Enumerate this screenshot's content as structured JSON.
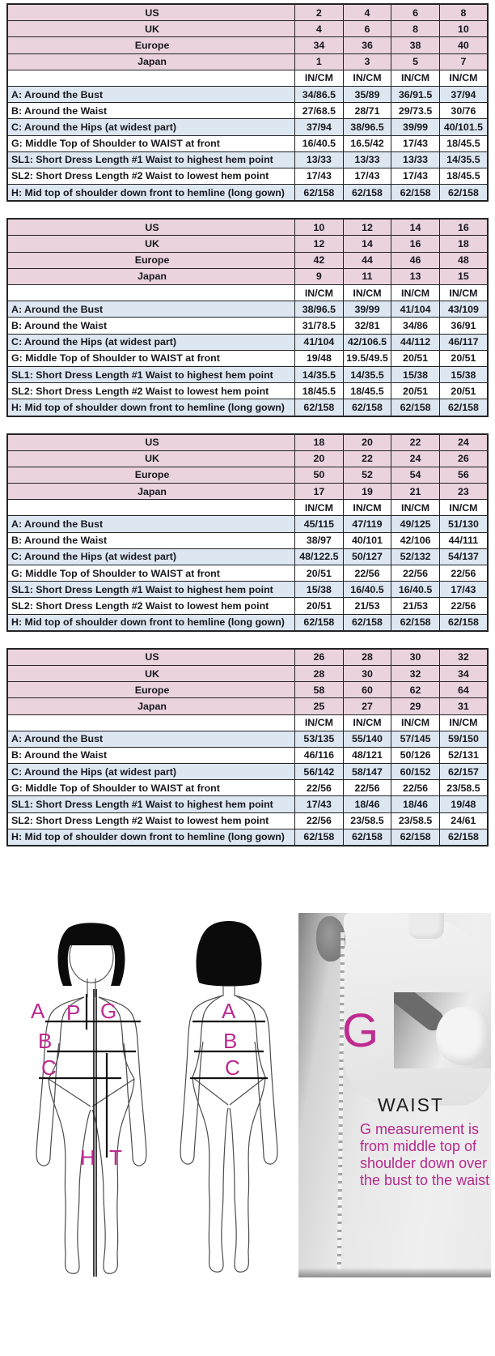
{
  "colors": {
    "header_pink": "#ead3dd",
    "row_blue": "#dde7f1",
    "row_white": "#ffffff",
    "border": "#232323",
    "text": "#17171f",
    "magenta": "#bd2990"
  },
  "unit_label": "IN/CM",
  "region_labels": [
    "US",
    "UK",
    "Europe",
    "Japan"
  ],
  "measurement_labels": [
    "A: Around the Bust",
    "B: Around the Waist",
    "C: Around the Hips (at widest part)",
    "G: Middle Top of Shoulder to WAIST at front",
    "SL1: Short Dress Length #1 Waist to highest hem point",
    "SL2: Short Dress Length #2 Waist to lowest hem point",
    "H: Mid top of shoulder down front to hemline (long gown)"
  ],
  "tables": [
    {
      "region_rows": [
        [
          "2",
          "4",
          "6",
          "8"
        ],
        [
          "4",
          "6",
          "8",
          "10"
        ],
        [
          "34",
          "36",
          "38",
          "40"
        ],
        [
          "1",
          "3",
          "5",
          "7"
        ]
      ],
      "measurements": [
        [
          "34/86.5",
          "35/89",
          "36/91.5",
          "37/94"
        ],
        [
          "27/68.5",
          "28/71",
          "29/73.5",
          "30/76"
        ],
        [
          "37/94",
          "38/96.5",
          "39/99",
          "40/101.5"
        ],
        [
          "16/40.5",
          "16.5/42",
          "17/43",
          "18/45.5"
        ],
        [
          "13/33",
          "13/33",
          "13/33",
          "14/35.5"
        ],
        [
          "17/43",
          "17/43",
          "17/43",
          "18/45.5"
        ],
        [
          "62/158",
          "62/158",
          "62/158",
          "62/158"
        ]
      ]
    },
    {
      "region_rows": [
        [
          "10",
          "12",
          "14",
          "16"
        ],
        [
          "12",
          "14",
          "16",
          "18"
        ],
        [
          "42",
          "44",
          "46",
          "48"
        ],
        [
          "9",
          "11",
          "13",
          "15"
        ]
      ],
      "measurements": [
        [
          "38/96.5",
          "39/99",
          "41/104",
          "43/109"
        ],
        [
          "31/78.5",
          "32/81",
          "34/86",
          "36/91"
        ],
        [
          "41/104",
          "42/106.5",
          "44/112",
          "46/117"
        ],
        [
          "19/48",
          "19.5/49.5",
          "20/51",
          "20/51"
        ],
        [
          "14/35.5",
          "14/35.5",
          "15/38",
          "15/38"
        ],
        [
          "18/45.5",
          "18/45.5",
          "20/51",
          "20/51"
        ],
        [
          "62/158",
          "62/158",
          "62/158",
          "62/158"
        ]
      ]
    },
    {
      "region_rows": [
        [
          "18",
          "20",
          "22",
          "24"
        ],
        [
          "20",
          "22",
          "24",
          "26"
        ],
        [
          "50",
          "52",
          "54",
          "56"
        ],
        [
          "17",
          "19",
          "21",
          "23"
        ]
      ],
      "measurements": [
        [
          "45/115",
          "47/119",
          "49/125",
          "51/130"
        ],
        [
          "38/97",
          "40/101",
          "42/106",
          "44/111"
        ],
        [
          "48/122.5",
          "50/127",
          "52/132",
          "54/137"
        ],
        [
          "20/51",
          "22/56",
          "22/56",
          "22/56"
        ],
        [
          "15/38",
          "16/40.5",
          "16/40.5",
          "17/43"
        ],
        [
          "20/51",
          "21/53",
          "21/53",
          "22/56"
        ],
        [
          "62/158",
          "62/158",
          "62/158",
          "62/158"
        ]
      ]
    },
    {
      "region_rows": [
        [
          "26",
          "28",
          "30",
          "32"
        ],
        [
          "28",
          "30",
          "32",
          "34"
        ],
        [
          "58",
          "60",
          "62",
          "64"
        ],
        [
          "25",
          "27",
          "29",
          "31"
        ]
      ],
      "measurements": [
        [
          "53/135",
          "55/140",
          "57/145",
          "59/150"
        ],
        [
          "46/116",
          "48/121",
          "50/126",
          "52/131"
        ],
        [
          "56/142",
          "58/147",
          "60/152",
          "62/157"
        ],
        [
          "22/56",
          "22/56",
          "22/56",
          "23/58.5"
        ],
        [
          "17/43",
          "18/46",
          "18/46",
          "19/48"
        ],
        [
          "22/56",
          "23/58.5",
          "23/58.5",
          "24/61"
        ],
        [
          "62/158",
          "62/158",
          "62/158",
          "62/158"
        ]
      ]
    }
  ],
  "diagram": {
    "front_figure": {
      "labels": {
        "P": "P",
        "G": "G",
        "A": "A",
        "B": "B",
        "C": "C",
        "H": "H",
        "T": "T"
      }
    },
    "back_figure": {
      "labels": {
        "A": "A",
        "B": "B",
        "C": "C"
      }
    },
    "photo": {
      "big_letter": "G",
      "title": "WAIST",
      "caption": "G measurement is from middle top of shoulder down over the bust to the waist"
    }
  }
}
